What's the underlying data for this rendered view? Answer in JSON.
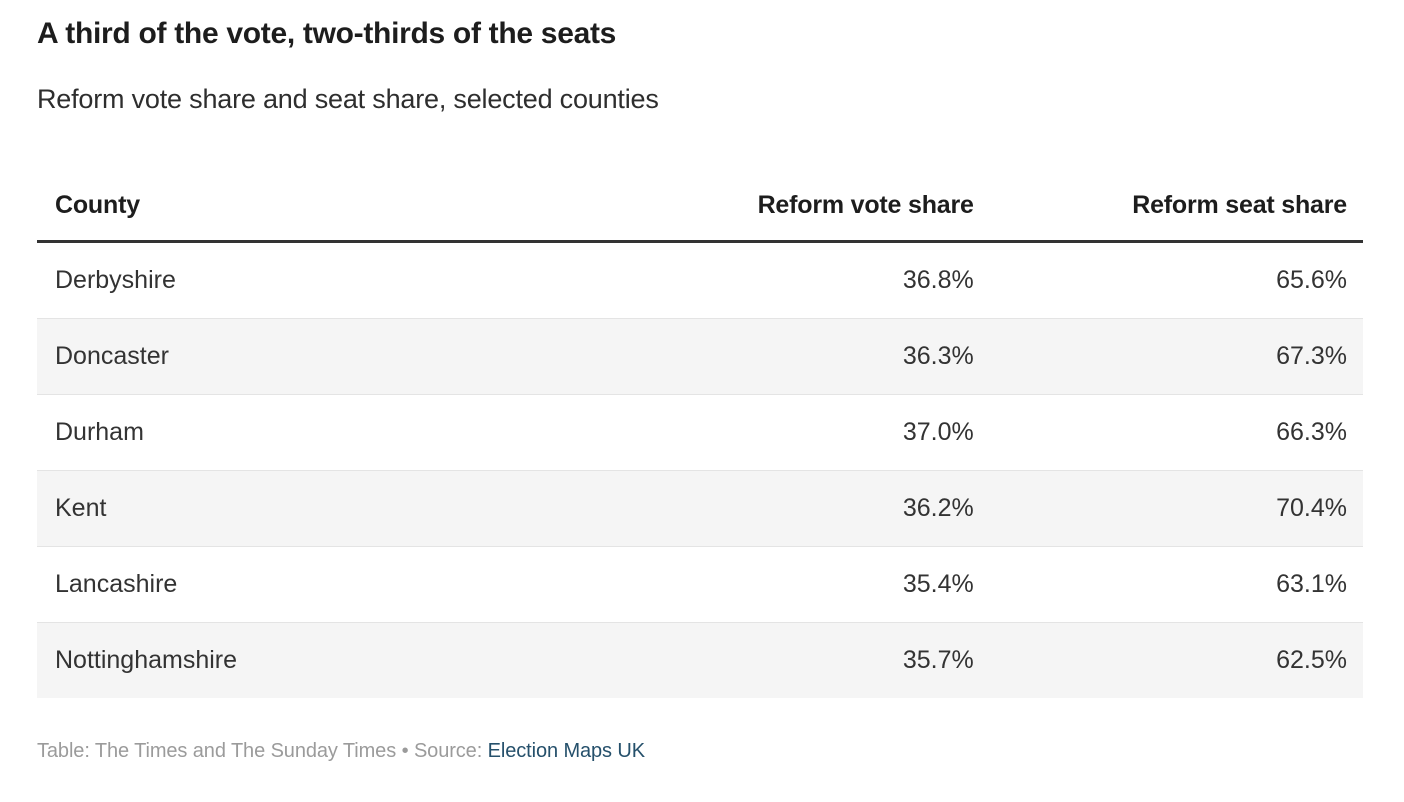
{
  "chart_data": {
    "type": "table",
    "title": "A third of the vote, two-thirds of the seats",
    "subtitle": "Reform vote share and seat share, selected counties",
    "columns": [
      "County",
      "Reform vote share",
      "Reform seat share"
    ],
    "rows": [
      {
        "county": "Derbyshire",
        "reform_vote_share": "36.8%",
        "reform_seat_share": "65.6%"
      },
      {
        "county": "Doncaster",
        "reform_vote_share": "36.3%",
        "reform_seat_share": "67.3%"
      },
      {
        "county": "Durham",
        "reform_vote_share": "37.0%",
        "reform_seat_share": "66.3%"
      },
      {
        "county": "Kent",
        "reform_vote_share": "36.2%",
        "reform_seat_share": "70.4%"
      },
      {
        "county": "Lancashire",
        "reform_vote_share": "35.4%",
        "reform_seat_share": "63.1%"
      },
      {
        "county": "Nottinghamshire",
        "reform_vote_share": "35.7%",
        "reform_seat_share": "62.5%"
      }
    ],
    "rows_numeric": [
      {
        "county": "Derbyshire",
        "reform_vote_share_pct": 36.8,
        "reform_seat_share_pct": 65.6
      },
      {
        "county": "Doncaster",
        "reform_vote_share_pct": 36.3,
        "reform_seat_share_pct": 67.3
      },
      {
        "county": "Durham",
        "reform_vote_share_pct": 37.0,
        "reform_seat_share_pct": 66.3
      },
      {
        "county": "Kent",
        "reform_vote_share_pct": 36.2,
        "reform_seat_share_pct": 70.4
      },
      {
        "county": "Lancashire",
        "reform_vote_share_pct": 35.4,
        "reform_seat_share_pct": 63.1
      },
      {
        "county": "Nottinghamshire",
        "reform_vote_share_pct": 35.7,
        "reform_seat_share_pct": 62.5
      }
    ],
    "layout_hints": {
      "zebra_striping": true,
      "striped_rows": [
        "Doncaster",
        "Kent",
        "Nottinghamshire"
      ],
      "numeric_columns_alignment": "right"
    }
  },
  "footer": {
    "credit": "Table: The Times and The Sunday Times",
    "separator": "•",
    "source_label": "Source:",
    "source_link_text": "Election Maps UK"
  },
  "colors": {
    "header_color": "#1d1d1d",
    "body_color": "#333333",
    "rule_color": "#333333",
    "divider_color": "#e4e4e4",
    "stripe_color": "#f5f5f5",
    "footer_color": "#9b9b9b",
    "link_color": "#25506b",
    "background": "#ffffff"
  }
}
